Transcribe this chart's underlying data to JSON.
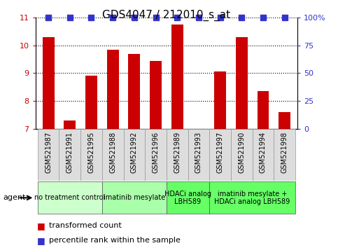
{
  "title": "GDS4047 / 212010_s_at",
  "samples": [
    "GSM521987",
    "GSM521991",
    "GSM521995",
    "GSM521988",
    "GSM521992",
    "GSM521996",
    "GSM521989",
    "GSM521993",
    "GSM521997",
    "GSM521990",
    "GSM521994",
    "GSM521998"
  ],
  "bar_values": [
    10.3,
    7.3,
    8.9,
    9.85,
    9.7,
    9.45,
    10.75,
    7.0,
    9.05,
    10.3,
    8.35,
    7.6
  ],
  "percentile_values": [
    100,
    100,
    100,
    100,
    100,
    100,
    100,
    100,
    100,
    100,
    100,
    100
  ],
  "bar_color": "#cc0000",
  "percentile_color": "#3333cc",
  "ylim_left": [
    7,
    11
  ],
  "ylim_right": [
    0,
    100
  ],
  "yticks_left": [
    7,
    8,
    9,
    10,
    11
  ],
  "yticks_right": [
    0,
    25,
    50,
    75,
    100
  ],
  "ytick_labels_right": [
    "0",
    "25",
    "50",
    "75",
    "100%"
  ],
  "groups": [
    {
      "label": "no treatment control",
      "start": 0,
      "end": 3,
      "color": "#ccffcc"
    },
    {
      "label": "imatinib mesylate",
      "start": 3,
      "end": 6,
      "color": "#aaffaa"
    },
    {
      "label": "HDACi analog\nLBH589",
      "start": 6,
      "end": 8,
      "color": "#66ff66"
    },
    {
      "label": "imatinib mesylate +\nHDACi analog LBH589",
      "start": 8,
      "end": 12,
      "color": "#66ff66"
    }
  ],
  "agent_label": "agent",
  "legend": [
    {
      "label": "transformed count",
      "color": "#cc0000"
    },
    {
      "label": "percentile rank within the sample",
      "color": "#3333cc"
    }
  ],
  "bar_width": 0.55,
  "percentile_marker_size": 6,
  "title_fontsize": 11,
  "tick_fontsize": 8,
  "sample_fontsize": 7,
  "group_fontsize": 7,
  "legend_fontsize": 8
}
